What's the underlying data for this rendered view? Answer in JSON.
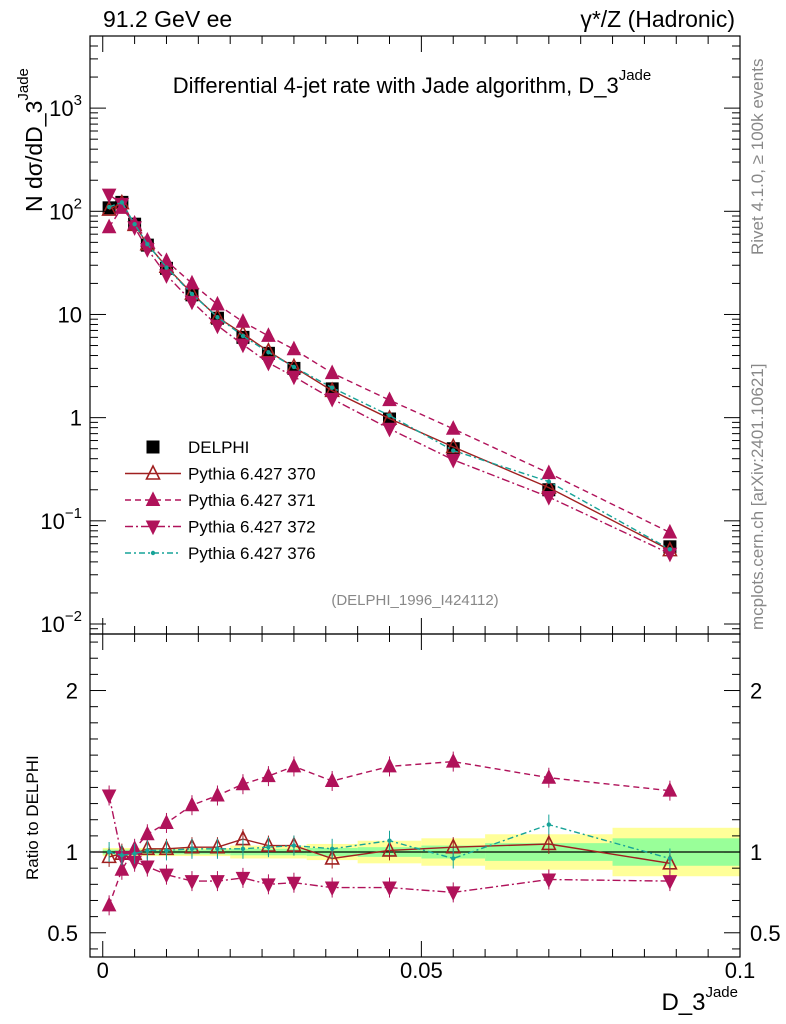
{
  "header": {
    "energy_label": "91.2 GeV ee",
    "process_label": "γ*/Z (Hadronic)"
  },
  "side_labels": {
    "rivet": "Rivet 4.1.0, ≥ 100k events",
    "mcplots": "mcplots.cern.ch [arXiv:2401.10621]"
  },
  "chart_data": [
    {
      "type": "line",
      "title": "Differential 4-jet rate with Jade algorithm, D_3^Jade",
      "title_main": "Differential 4-jet rate with Jade algorithm, D_3",
      "title_sup": "Jade",
      "ylabel_main": "N  dσ/dD_3",
      "ylabel_sup": "Jade",
      "yscale": "log",
      "ylim": [
        0.008,
        5000
      ],
      "xlim": [
        -0.002,
        0.1
      ],
      "y_ticks": [
        {
          "value": 0.01,
          "base": "10",
          "exp": "−2"
        },
        {
          "value": 0.1,
          "base": "10",
          "exp": "−1"
        },
        {
          "value": 1,
          "base": "1",
          "exp": ""
        },
        {
          "value": 10,
          "base": "10",
          "exp": ""
        },
        {
          "value": 100,
          "base": "10",
          "exp": "2"
        },
        {
          "value": 1000,
          "base": "10",
          "exp": "3"
        }
      ],
      "reference_tag": "(DELPHI_1996_I424112)",
      "legend": [
        "DELPHI",
        "Pythia 6.427 370",
        "Pythia 6.427 371",
        "Pythia 6.427 372",
        "Pythia 6.427 376"
      ],
      "x": [
        0.001,
        0.003,
        0.005,
        0.007,
        0.01,
        0.014,
        0.018,
        0.022,
        0.026,
        0.03,
        0.036,
        0.045,
        0.055,
        0.07,
        0.089
      ],
      "series": [
        {
          "name": "DELPHI",
          "color": "#000000",
          "marker": "square",
          "dash": "none",
          "values": [
            108,
            122,
            75,
            47,
            28,
            15.5,
            9.2,
            6.0,
            4.2,
            3.0,
            1.9,
            0.97,
            0.5,
            0.2,
            0.056
          ]
        },
        {
          "name": "Pythia 6.427 370",
          "color": "#a02020",
          "marker": "triangle-up-open",
          "dash": "none",
          "values": [
            104,
            120,
            74,
            48,
            29,
            16,
            9.4,
            6.5,
            4.4,
            3.1,
            1.82,
            0.98,
            0.52,
            0.21,
            0.052
          ]
        },
        {
          "name": "Pythia 6.427 371",
          "color": "#b0125a",
          "marker": "triangle-up",
          "dash": "6,4",
          "values": [
            70,
            108,
            76,
            52,
            33,
            20,
            12.5,
            8.5,
            6.2,
            4.6,
            2.7,
            1.48,
            0.78,
            0.29,
            0.077
          ]
        },
        {
          "name": "Pythia 6.427 372",
          "color": "#b0125a",
          "marker": "triangle-down",
          "dash": "8,3,2,3",
          "values": [
            145,
            118,
            70,
            43,
            24,
            13.3,
            7.8,
            5.1,
            3.4,
            2.5,
            1.52,
            0.78,
            0.39,
            0.17,
            0.048
          ]
        },
        {
          "name": "Pythia 6.427 376",
          "color": "#17a398",
          "marker": "dot",
          "dash": "6,3,2,3",
          "values": [
            110,
            122,
            75,
            48,
            28.5,
            15.8,
            9.4,
            6.2,
            4.3,
            3.1,
            1.95,
            1.05,
            0.48,
            0.24,
            0.053
          ]
        }
      ]
    },
    {
      "type": "line",
      "ylabel": "Ratio to DELPHI",
      "xlabel_main": "D_3",
      "xlabel_sup": "Jade",
      "ylim": [
        0.35,
        2.35
      ],
      "xlim": [
        -0.002,
        0.1
      ],
      "x_ticks": [
        {
          "value": 0,
          "label": "0"
        },
        {
          "value": 0.05,
          "label": "0.05"
        },
        {
          "value": 0.1,
          "label": "0.1"
        }
      ],
      "y_ticks": [
        {
          "value": 0.5,
          "label": "0.5"
        },
        {
          "value": 1,
          "label": "1"
        },
        {
          "value": 2,
          "label": "2"
        }
      ],
      "x": [
        0.001,
        0.003,
        0.005,
        0.007,
        0.01,
        0.014,
        0.018,
        0.022,
        0.026,
        0.03,
        0.036,
        0.045,
        0.055,
        0.07,
        0.089
      ],
      "uncertainty_bands": [
        {
          "x0": 0.0,
          "x1": 0.02,
          "inner": 0.015,
          "outer": 0.025
        },
        {
          "x0": 0.02,
          "x1": 0.032,
          "inner": 0.02,
          "outer": 0.04
        },
        {
          "x0": 0.032,
          "x1": 0.04,
          "inner": 0.025,
          "outer": 0.05
        },
        {
          "x0": 0.04,
          "x1": 0.05,
          "inner": 0.03,
          "outer": 0.07
        },
        {
          "x0": 0.05,
          "x1": 0.06,
          "inner": 0.04,
          "outer": 0.085
        },
        {
          "x0": 0.06,
          "x1": 0.08,
          "inner": 0.055,
          "outer": 0.11
        },
        {
          "x0": 0.08,
          "x1": 0.1,
          "inner": 0.085,
          "outer": 0.15
        }
      ],
      "series": [
        {
          "name": "Pythia 6.427 370",
          "color": "#a02020",
          "marker": "triangle-up-open",
          "dash": "none",
          "values": [
            0.97,
            0.99,
            0.99,
            1.02,
            1.02,
            1.03,
            1.03,
            1.08,
            1.04,
            1.04,
            0.96,
            1.01,
            1.03,
            1.05,
            0.93
          ]
        },
        {
          "name": "Pythia 6.427 371",
          "color": "#b0125a",
          "marker": "triangle-up",
          "dash": "6,4",
          "values": [
            0.67,
            0.89,
            1.02,
            1.11,
            1.18,
            1.29,
            1.35,
            1.42,
            1.47,
            1.53,
            1.44,
            1.53,
            1.56,
            1.46,
            1.38
          ]
        },
        {
          "name": "Pythia 6.427 372",
          "color": "#b0125a",
          "marker": "triangle-down",
          "dash": "8,3,2,3",
          "values": [
            1.35,
            0.97,
            0.94,
            0.91,
            0.86,
            0.82,
            0.82,
            0.84,
            0.8,
            0.81,
            0.78,
            0.78,
            0.75,
            0.83,
            0.82
          ]
        },
        {
          "name": "Pythia 6.427 376",
          "color": "#17a398",
          "marker": "dot",
          "dash": "6,3,2,3",
          "values": [
            1.0,
            0.98,
            0.99,
            1.01,
            1.01,
            1.02,
            1.02,
            1.02,
            1.03,
            1.04,
            1.02,
            1.07,
            0.96,
            1.17,
            0.96
          ]
        }
      ]
    }
  ]
}
